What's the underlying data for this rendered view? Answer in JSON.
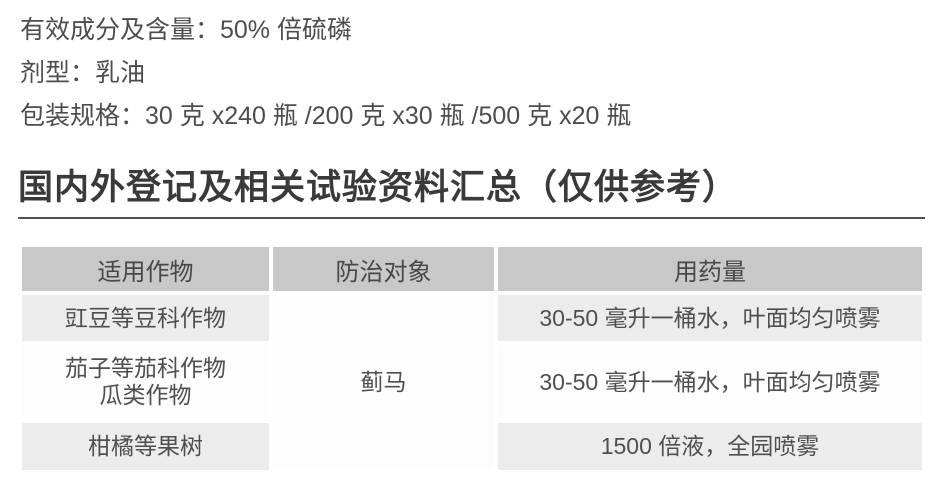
{
  "product_info": {
    "lines": [
      "有效成分及含量：50% 倍硫磷",
      "剂型：乳油",
      "包装规格：30 克 x240 瓶 /200 克 x30 瓶 /500 克 x20 瓶"
    ]
  },
  "section": {
    "title": "国内外登记及相关试验资料汇总（仅供参考）"
  },
  "table": {
    "headers": [
      "适用作物",
      "防治对象",
      "用药量"
    ],
    "pest": "蓟马",
    "rows": [
      {
        "crop": "豇豆等豆科作物",
        "dosage": "30-50 毫升一桶水，叶面均匀喷雾"
      },
      {
        "crop": "茄子等茄科作物",
        "crop2": "瓜类作物",
        "dosage": "30-50 毫升一桶水，叶面均匀喷雾"
      },
      {
        "crop": "柑橘等果树",
        "dosage": "1500 倍液，全园喷雾"
      }
    ]
  },
  "colors": {
    "header_bg": "#c8c8c8",
    "row_alt_bg": "#ececec",
    "row_bg": "#fdfdfd",
    "text": "#4d4d4d",
    "title": "#3a3a3a",
    "rule": "#515151"
  }
}
